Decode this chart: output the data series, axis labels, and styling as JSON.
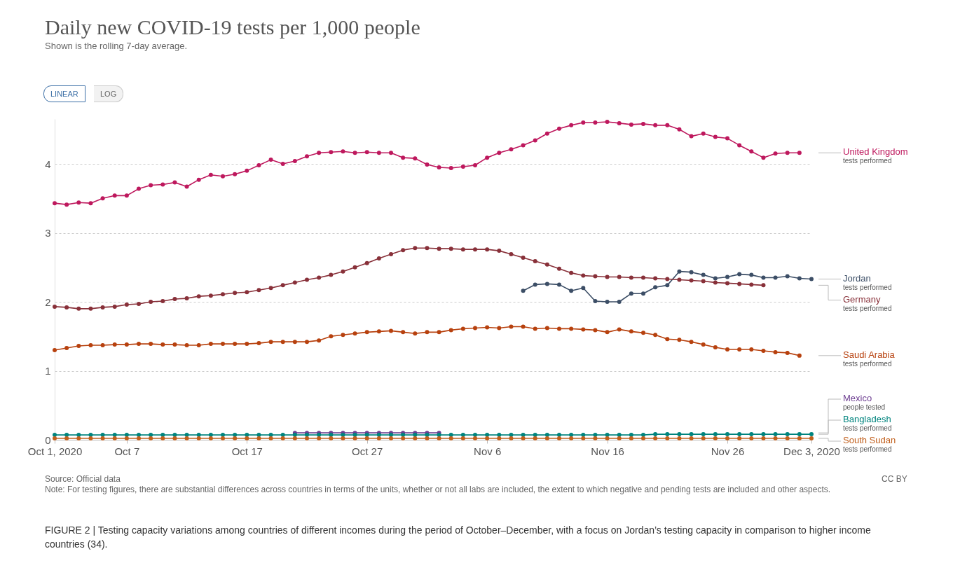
{
  "chart_data": {
    "type": "line",
    "title": "Daily new COVID-19 tests per 1,000 people",
    "subtitle": "Shown is the rolling 7-day average.",
    "x": [
      "2020-10-01",
      "2020-10-02",
      "2020-10-03",
      "2020-10-04",
      "2020-10-05",
      "2020-10-06",
      "2020-10-07",
      "2020-10-08",
      "2020-10-09",
      "2020-10-10",
      "2020-10-11",
      "2020-10-12",
      "2020-10-13",
      "2020-10-14",
      "2020-10-15",
      "2020-10-16",
      "2020-10-17",
      "2020-10-18",
      "2020-10-19",
      "2020-10-20",
      "2020-10-21",
      "2020-10-22",
      "2020-10-23",
      "2020-10-24",
      "2020-10-25",
      "2020-10-26",
      "2020-10-27",
      "2020-10-28",
      "2020-10-29",
      "2020-10-30",
      "2020-10-31",
      "2020-11-01",
      "2020-11-02",
      "2020-11-03",
      "2020-11-04",
      "2020-11-05",
      "2020-11-06",
      "2020-11-07",
      "2020-11-08",
      "2020-11-09",
      "2020-11-10",
      "2020-11-11",
      "2020-11-12",
      "2020-11-13",
      "2020-11-14",
      "2020-11-15",
      "2020-11-16",
      "2020-11-17",
      "2020-11-18",
      "2020-11-19",
      "2020-11-20",
      "2020-11-21",
      "2020-11-22",
      "2020-11-23",
      "2020-11-24",
      "2020-11-25",
      "2020-11-26",
      "2020-11-27",
      "2020-11-28",
      "2020-11-29",
      "2020-11-30",
      "2020-12-01",
      "2020-12-02",
      "2020-12-03"
    ],
    "series": [
      {
        "name": "United Kingdom",
        "color": "#be185d",
        "values": [
          3.43,
          3.41,
          3.44,
          3.43,
          3.5,
          3.54,
          3.54,
          3.64,
          3.69,
          3.7,
          3.73,
          3.67,
          3.77,
          3.84,
          3.82,
          3.85,
          3.9,
          3.98,
          4.06,
          4.0,
          4.04,
          4.11,
          4.16,
          4.17,
          4.18,
          4.16,
          4.17,
          4.16,
          4.16,
          4.09,
          4.08,
          3.99,
          3.95,
          3.94,
          3.96,
          3.98,
          4.09,
          4.16,
          4.21,
          4.27,
          4.34,
          4.44,
          4.51,
          4.56,
          4.6,
          4.6,
          4.61,
          4.59,
          4.57,
          4.58,
          4.56,
          4.56,
          4.5,
          4.4,
          4.44,
          4.39,
          4.37,
          4.27,
          4.18,
          4.09,
          4.15,
          4.16,
          4.16,
          null
        ]
      },
      {
        "name": "Jordan",
        "color": "#3c4e66",
        "x": [
          "2020-11-09",
          "2020-11-10",
          "2020-11-11",
          "2020-11-12",
          "2020-11-13",
          "2020-11-14",
          "2020-11-15",
          "2020-11-16",
          "2020-11-17",
          "2020-11-18",
          "2020-11-19",
          "2020-11-20",
          "2020-11-21",
          "2020-11-22",
          "2020-11-23",
          "2020-11-24",
          "2020-11-25",
          "2020-11-26",
          "2020-11-27",
          "2020-11-28",
          "2020-11-29",
          "2020-11-30",
          "2020-12-01",
          "2020-12-02",
          "2020-12-03"
        ],
        "values": [
          2.16,
          2.25,
          2.26,
          2.25,
          2.16,
          2.2,
          2.01,
          2.0,
          2.0,
          2.12,
          2.12,
          2.21,
          2.24,
          2.44,
          2.43,
          2.39,
          2.34,
          2.36,
          2.4,
          2.39,
          2.35,
          2.35,
          2.37,
          2.34,
          2.33
        ]
      },
      {
        "name": "Germany",
        "color": "#883039",
        "values": [
          1.93,
          1.92,
          1.9,
          1.9,
          1.92,
          1.93,
          1.96,
          1.97,
          2.0,
          2.01,
          2.04,
          2.05,
          2.08,
          2.09,
          2.11,
          2.13,
          2.14,
          2.17,
          2.2,
          2.24,
          2.28,
          2.32,
          2.35,
          2.39,
          2.44,
          2.5,
          2.56,
          2.63,
          2.69,
          2.75,
          2.78,
          2.78,
          2.77,
          2.77,
          2.76,
          2.76,
          2.76,
          2.74,
          2.69,
          2.64,
          2.59,
          2.54,
          2.48,
          2.42,
          2.38,
          2.37,
          2.36,
          2.36,
          2.35,
          2.35,
          2.34,
          2.33,
          2.32,
          2.31,
          2.3,
          2.28,
          2.27,
          2.26,
          2.25,
          2.24,
          null,
          null,
          null,
          null
        ]
      },
      {
        "name": "Saudi Arabia",
        "color": "#b7410e",
        "values": [
          1.3,
          1.33,
          1.36,
          1.37,
          1.37,
          1.38,
          1.38,
          1.39,
          1.39,
          1.38,
          1.38,
          1.37,
          1.37,
          1.39,
          1.39,
          1.39,
          1.39,
          1.4,
          1.42,
          1.42,
          1.42,
          1.42,
          1.44,
          1.5,
          1.52,
          1.54,
          1.56,
          1.57,
          1.58,
          1.56,
          1.54,
          1.56,
          1.56,
          1.59,
          1.61,
          1.62,
          1.63,
          1.62,
          1.64,
          1.64,
          1.61,
          1.62,
          1.61,
          1.61,
          1.6,
          1.59,
          1.56,
          1.6,
          1.57,
          1.55,
          1.52,
          1.46,
          1.45,
          1.42,
          1.38,
          1.34,
          1.31,
          1.31,
          1.31,
          1.29,
          1.27,
          1.26,
          1.22,
          null
        ]
      },
      {
        "name": "Mexico",
        "color": "#6d3e91",
        "values": [
          null,
          null,
          null,
          null,
          null,
          null,
          null,
          null,
          null,
          null,
          null,
          null,
          null,
          null,
          null,
          null,
          null,
          null,
          null,
          null,
          0.1,
          0.1,
          0.1,
          0.1,
          0.1,
          0.1,
          0.1,
          0.1,
          0.1,
          0.1,
          0.1,
          0.1,
          0.1,
          null,
          null,
          null,
          null,
          null,
          null,
          null,
          null,
          null,
          null,
          null,
          null,
          null,
          null,
          null,
          null,
          null,
          null,
          null,
          null,
          null,
          null,
          null,
          null,
          null,
          null,
          null,
          null,
          null,
          null,
          null
        ]
      },
      {
        "name": "Bangladesh",
        "color": "#00847e",
        "values": [
          0.07,
          0.07,
          0.07,
          0.07,
          0.07,
          0.07,
          0.07,
          0.07,
          0.07,
          0.07,
          0.07,
          0.07,
          0.07,
          0.07,
          0.07,
          0.07,
          0.07,
          0.07,
          0.07,
          0.07,
          0.07,
          0.07,
          0.07,
          0.07,
          0.07,
          0.07,
          0.07,
          0.07,
          0.07,
          0.07,
          0.07,
          0.07,
          0.07,
          0.07,
          0.07,
          0.07,
          0.07,
          0.07,
          0.07,
          0.07,
          0.07,
          0.07,
          0.07,
          0.07,
          0.07,
          0.07,
          0.07,
          0.07,
          0.07,
          0.07,
          0.08,
          0.08,
          0.08,
          0.08,
          0.08,
          0.08,
          0.08,
          0.08,
          0.08,
          0.08,
          0.08,
          0.08,
          0.08,
          0.08
        ]
      },
      {
        "name": "South Sudan",
        "color": "#c15f1c",
        "values": [
          0.02,
          0.02,
          0.02,
          0.02,
          0.02,
          0.02,
          0.02,
          0.02,
          0.02,
          0.02,
          0.02,
          0.02,
          0.02,
          0.02,
          0.02,
          0.02,
          0.02,
          0.02,
          0.02,
          0.02,
          0.02,
          0.02,
          0.02,
          0.02,
          0.02,
          0.02,
          0.02,
          0.02,
          0.02,
          0.02,
          0.02,
          0.02,
          0.02,
          0.02,
          0.02,
          0.02,
          0.02,
          0.02,
          0.02,
          0.02,
          0.02,
          0.02,
          0.02,
          0.02,
          0.02,
          0.02,
          0.02,
          0.02,
          0.02,
          0.02,
          0.02,
          0.02,
          0.02,
          0.02,
          0.02,
          0.02,
          0.02,
          0.02,
          0.02,
          0.02,
          0.02,
          0.02,
          0.02,
          0.02
        ]
      }
    ],
    "xlim": [
      "2020-10-01",
      "2020-12-03"
    ],
    "xticks": [
      {
        "value": "2020-10-01",
        "label": "Oct 1, 2020"
      },
      {
        "value": "2020-10-07",
        "label": "Oct 7"
      },
      {
        "value": "2020-10-17",
        "label": "Oct 17"
      },
      {
        "value": "2020-10-27",
        "label": "Oct 27"
      },
      {
        "value": "2020-11-06",
        "label": "Nov 6"
      },
      {
        "value": "2020-11-16",
        "label": "Nov 16"
      },
      {
        "value": "2020-11-26",
        "label": "Nov 26"
      },
      {
        "value": "2020-12-03",
        "label": "Dec 3, 2020"
      }
    ],
    "ylim": [
      0,
      4.65
    ],
    "yticks": [
      0,
      1,
      2,
      3,
      4
    ],
    "grid": "y",
    "marker": "circle",
    "line_style": "solid",
    "annotations": [
      "LINEAR",
      "LOG",
      "Source: Official data",
      "Note: For testing figures, there are substantial differences across countries in terms of the units, whether or not all labs are included, the extent to which negative and pending tests are included and other aspects.",
      "CC BY",
      "FIGURE 2 | Testing capacity variations among countries of different incomes during the period of October–December, with a focus on Jordan’s testing capacity in comparison to higher income countries (34).",
      "tests performed",
      "tests performed",
      "tests performed",
      "tests performed",
      "people tested",
      "tests performed",
      "tests performed"
    ]
  }
}
